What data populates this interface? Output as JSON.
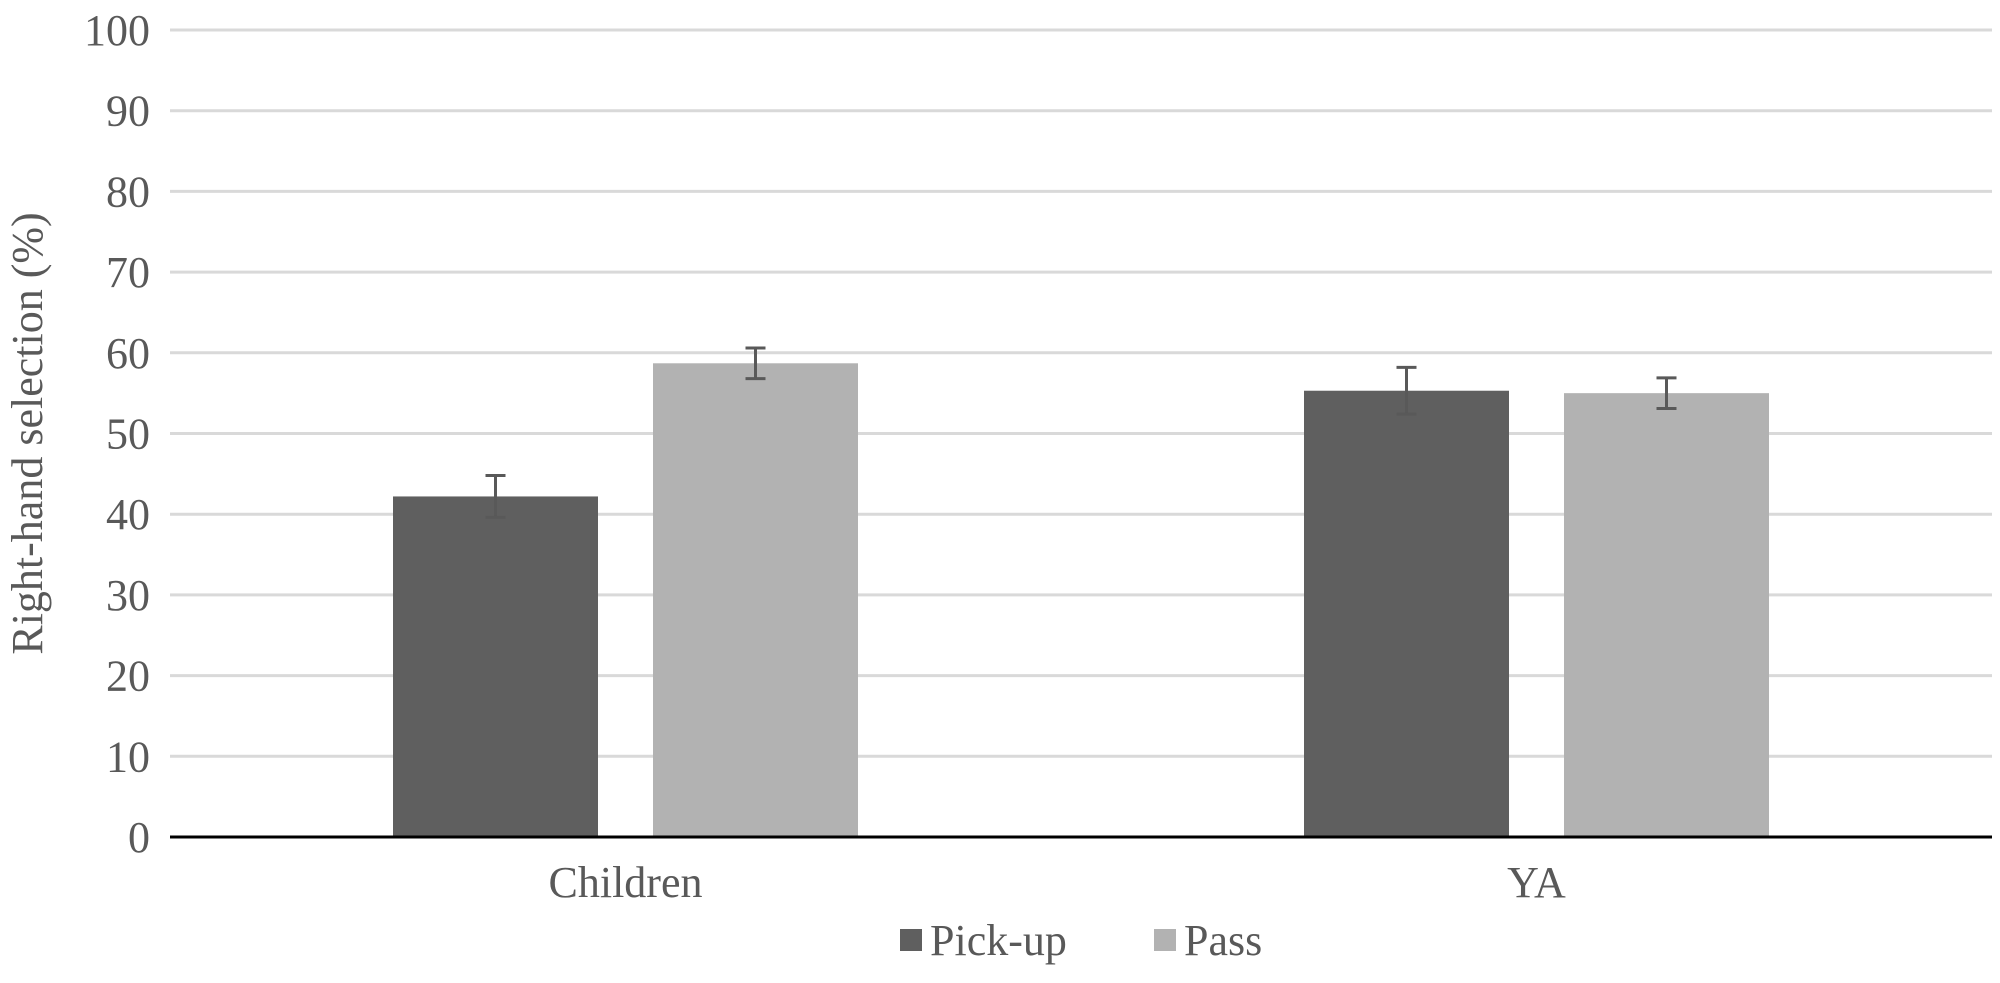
{
  "chart_data": {
    "type": "bar",
    "title": "",
    "xlabel": "",
    "ylabel": "Right-hand selection (%)",
    "ylim": [
      0,
      100
    ],
    "yticks": [
      0,
      10,
      20,
      30,
      40,
      50,
      60,
      70,
      80,
      90,
      100
    ],
    "grid": true,
    "legend_position": "bottom",
    "categories": [
      "Children",
      "YA"
    ],
    "series": [
      {
        "name": "Pick-up",
        "color": "#5f5f5f",
        "values": [
          42.2,
          55.3
        ],
        "errors": [
          2.6,
          2.9
        ]
      },
      {
        "name": "Pass",
        "color": "#b2b2b2",
        "values": [
          58.7,
          55.0
        ],
        "errors": [
          1.9,
          1.9
        ]
      }
    ]
  }
}
